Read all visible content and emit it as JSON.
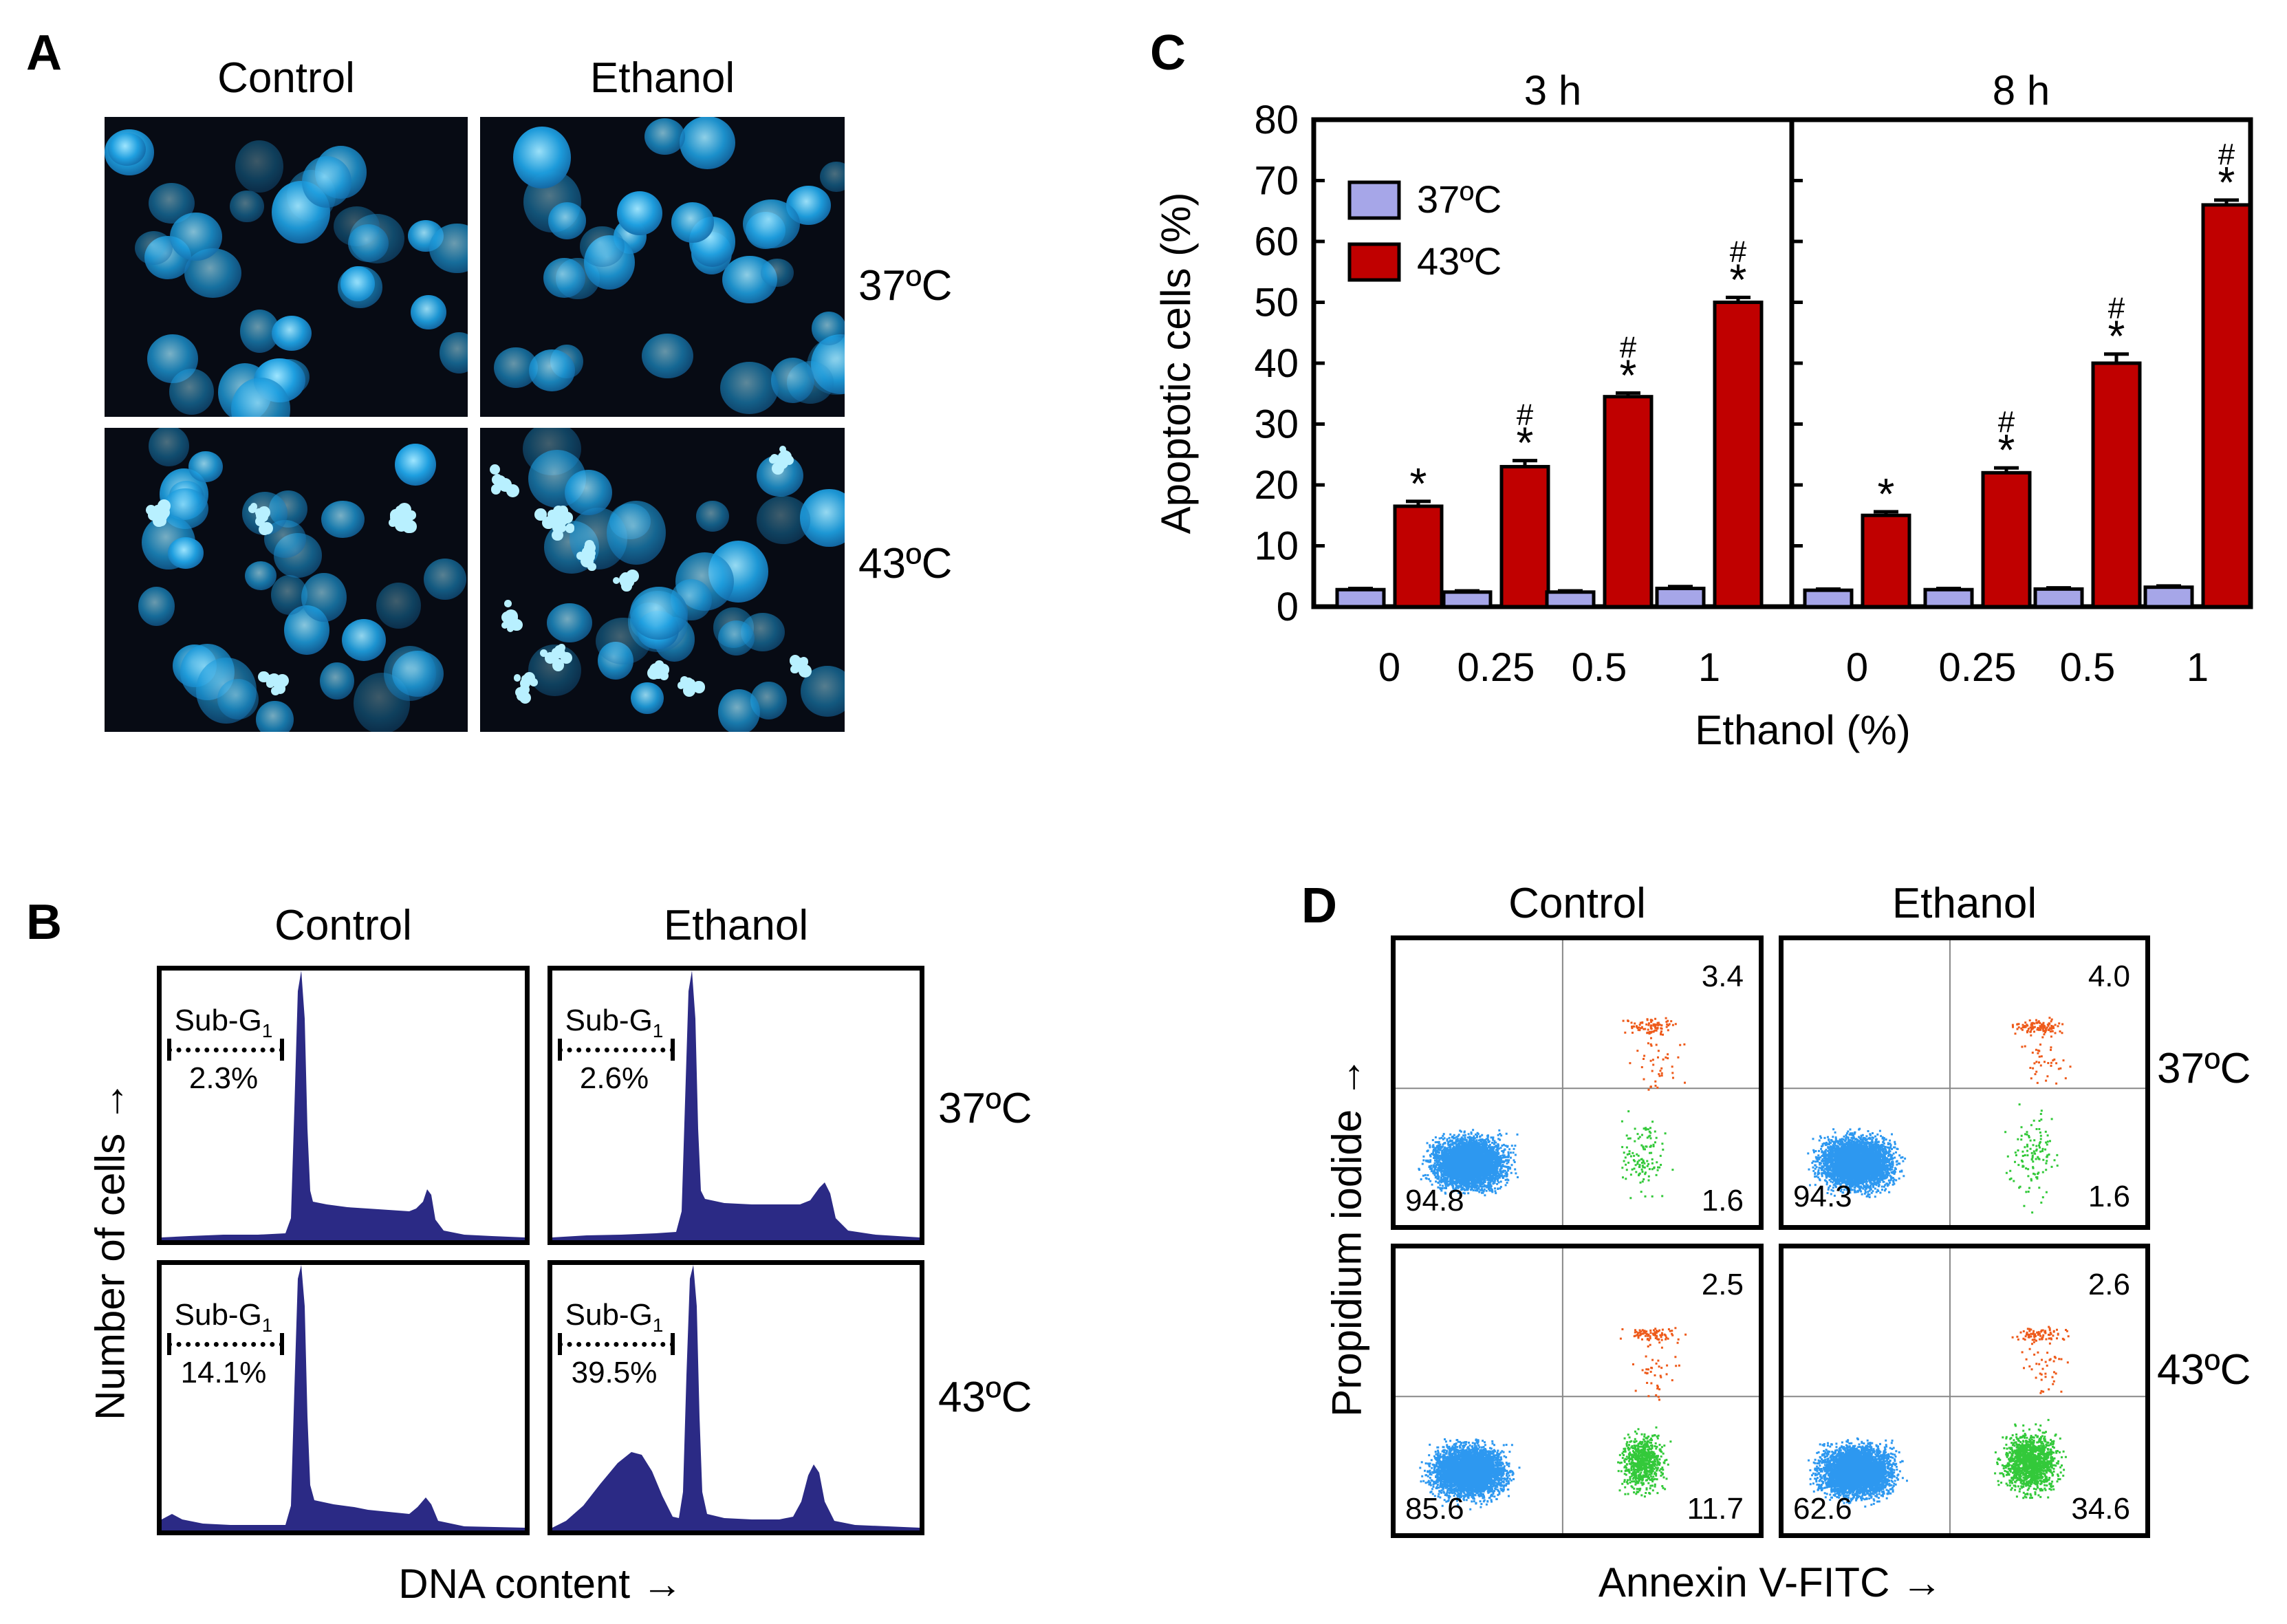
{
  "colors": {
    "nuclei": "#1e9fe0",
    "hist_fill": "#2b2a85",
    "bar_37": "#a6a6e8",
    "bar_43": "#c00000",
    "facs_blue": "#2d98f0",
    "facs_green": "#33c93a",
    "facs_orange": "#ee5a1a"
  },
  "panel_a": {
    "label": "A",
    "col_headers": [
      "Control",
      "Ethanol"
    ],
    "row_labels": [
      "37ºC",
      "43ºC"
    ]
  },
  "panel_b": {
    "label": "B",
    "col_headers": [
      "Control",
      "Ethanol"
    ],
    "row_labels": [
      "37ºC",
      "43ºC"
    ],
    "y_axis": "Number of cells →",
    "x_axis": "DNA content →",
    "subg1_label": "Sub-G",
    "subg1_sub": "1",
    "subg1_percent": [
      [
        "2.3%",
        "2.6%"
      ],
      [
        "14.1%",
        "39.5%"
      ]
    ]
  },
  "panel_c": {
    "label": "C"
  },
  "chart_data": {
    "type": "bar",
    "ylabel": "Apoptotic cells (%)",
    "xlabel": "Ethanol (%)",
    "ylim": [
      0,
      80
    ],
    "yticks": [
      "0",
      "10",
      "20",
      "30",
      "40",
      "50",
      "60",
      "70",
      "80"
    ],
    "categories": [
      "0",
      "0.25",
      "0.5",
      "1"
    ],
    "legend": [
      "37ºC",
      "43ºC"
    ],
    "legend_position": "top-left",
    "star_symbol": "*",
    "hash_symbol": "#",
    "panels": [
      {
        "title": "3 h",
        "series": [
          {
            "name": "37ºC",
            "values": [
              2.8,
              2.4,
              2.4,
              3.0
            ],
            "errors": [
              0.2,
              0.2,
              0.2,
              0.3
            ]
          },
          {
            "name": "43ºC",
            "values": [
              16.5,
              23.0,
              34.5,
              50.0
            ],
            "errors": [
              0.8,
              1.0,
              0.6,
              0.8
            ]
          }
        ],
        "star": [
          true,
          true,
          true,
          true
        ],
        "hash": [
          false,
          true,
          true,
          true
        ]
      },
      {
        "title": "8 h",
        "series": [
          {
            "name": "37ºC",
            "values": [
              2.7,
              2.8,
              2.9,
              3.2
            ],
            "errors": [
              0.2,
              0.2,
              0.2,
              0.2
            ]
          },
          {
            "name": "43ºC",
            "values": [
              15.0,
              22.0,
              40.0,
              66.0
            ],
            "errors": [
              0.6,
              0.8,
              1.5,
              0.8
            ]
          }
        ],
        "star": [
          true,
          true,
          true,
          true
        ],
        "hash": [
          false,
          true,
          true,
          true
        ]
      }
    ]
  },
  "panel_d": {
    "label": "D",
    "col_headers": [
      "Control",
      "Ethanol"
    ],
    "row_labels": [
      "37ºC",
      "43ºC"
    ],
    "y_axis": "Propidium iodide →",
    "x_axis": "Annexin V-FITC →",
    "quadrants": [
      [
        {
          "ur": "3.4",
          "ll": "94.8",
          "lr": "1.6"
        },
        {
          "ur": "4.0",
          "ll": "94.3",
          "lr": "1.6"
        }
      ],
      [
        {
          "ur": "2.5",
          "ll": "85.6",
          "lr": "11.7"
        },
        {
          "ur": "2.6",
          "ll": "62.6",
          "lr": "34.6"
        }
      ]
    ]
  }
}
